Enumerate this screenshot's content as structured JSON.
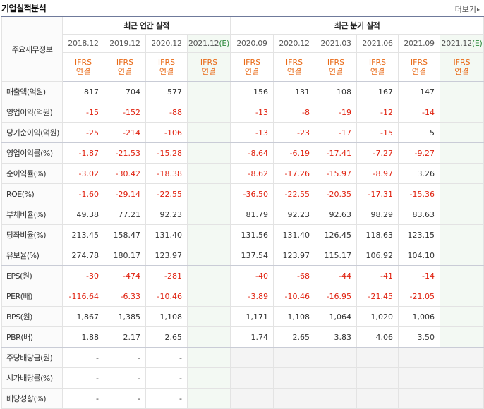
{
  "header": {
    "title": "기업실적분석",
    "more_label": "더보기",
    "more_arrow": "▸"
  },
  "table": {
    "corner_label": "주요재무정보",
    "annual_group_label": "최근 연간 실적",
    "quarter_group_label": "최근 분기 실적",
    "annual_dates": [
      {
        "date": "2018.12",
        "est": ""
      },
      {
        "date": "2019.12",
        "est": ""
      },
      {
        "date": "2020.12",
        "est": ""
      },
      {
        "date": "2021.12",
        "est": "(E)"
      }
    ],
    "quarter_dates": [
      {
        "date": "2020.09",
        "est": ""
      },
      {
        "date": "2020.12",
        "est": ""
      },
      {
        "date": "2021.03",
        "est": ""
      },
      {
        "date": "2021.06",
        "est": ""
      },
      {
        "date": "2021.09",
        "est": ""
      },
      {
        "date": "2021.12",
        "est": "(E)"
      }
    ],
    "ifrs_top": "IFRS",
    "ifrs_bottom": "연결",
    "rows": [
      {
        "label": "매출액(억원)",
        "annual": [
          "817",
          "704",
          "577",
          ""
        ],
        "quarter": [
          "156",
          "131",
          "108",
          "167",
          "147",
          ""
        ]
      },
      {
        "label": "영업이익(억원)",
        "annual": [
          "-15",
          "-152",
          "-88",
          ""
        ],
        "quarter": [
          "-13",
          "-8",
          "-19",
          "-12",
          "-14",
          ""
        ]
      },
      {
        "label": "당기순이익(억원)",
        "annual": [
          "-25",
          "-214",
          "-106",
          ""
        ],
        "quarter": [
          "-13",
          "-23",
          "-17",
          "-15",
          "5",
          ""
        ]
      },
      {
        "label": "영업이익률(%)",
        "annual": [
          "-1.87",
          "-21.53",
          "-15.28",
          ""
        ],
        "quarter": [
          "-8.64",
          "-6.19",
          "-17.41",
          "-7.27",
          "-9.27",
          ""
        ]
      },
      {
        "label": "순이익률(%)",
        "annual": [
          "-3.02",
          "-30.42",
          "-18.38",
          ""
        ],
        "quarter": [
          "-8.62",
          "-17.26",
          "-15.97",
          "-8.97",
          "3.26",
          ""
        ]
      },
      {
        "label": "ROE(%)",
        "annual": [
          "-1.60",
          "-29.14",
          "-22.55",
          ""
        ],
        "quarter": [
          "-36.50",
          "-22.55",
          "-20.35",
          "-17.31",
          "-15.36",
          ""
        ]
      },
      {
        "label": "부채비율(%)",
        "annual": [
          "49.38",
          "77.21",
          "92.23",
          ""
        ],
        "quarter": [
          "81.79",
          "92.23",
          "92.63",
          "98.29",
          "83.63",
          ""
        ]
      },
      {
        "label": "당좌비율(%)",
        "annual": [
          "213.45",
          "158.47",
          "131.40",
          ""
        ],
        "quarter": [
          "131.56",
          "131.40",
          "126.45",
          "118.63",
          "123.15",
          ""
        ]
      },
      {
        "label": "유보율(%)",
        "annual": [
          "274.78",
          "180.17",
          "123.97",
          ""
        ],
        "quarter": [
          "137.54",
          "123.97",
          "115.17",
          "106.92",
          "104.10",
          ""
        ]
      },
      {
        "label": "EPS(원)",
        "annual": [
          "-30",
          "-474",
          "-281",
          ""
        ],
        "quarter": [
          "-40",
          "-68",
          "-44",
          "-41",
          "-14",
          ""
        ]
      },
      {
        "label": "PER(배)",
        "annual": [
          "-116.64",
          "-6.33",
          "-10.46",
          ""
        ],
        "quarter": [
          "-3.89",
          "-10.46",
          "-16.95",
          "-21.45",
          "-21.05",
          ""
        ]
      },
      {
        "label": "BPS(원)",
        "annual": [
          "1,867",
          "1,385",
          "1,108",
          ""
        ],
        "quarter": [
          "1,171",
          "1,108",
          "1,064",
          "1,020",
          "1,006",
          ""
        ]
      },
      {
        "label": "PBR(배)",
        "annual": [
          "1.88",
          "2.17",
          "2.65",
          ""
        ],
        "quarter": [
          "1.74",
          "2.65",
          "3.83",
          "4.06",
          "3.50",
          ""
        ]
      },
      {
        "label": "주당배당금(원)",
        "annual": [
          "-",
          "-",
          "-",
          ""
        ],
        "quarter": null
      },
      {
        "label": "시가배당률(%)",
        "annual": [
          "-",
          "-",
          "-",
          ""
        ],
        "quarter": null
      },
      {
        "label": "배당성향(%)",
        "annual": [
          "-",
          "-",
          "-",
          ""
        ],
        "quarter": null
      }
    ],
    "colors": {
      "negative": "#e0210f",
      "ifrs": "#e96a17",
      "estimate_label": "#2e8b3d",
      "estimate_bg": "#f3f9f3"
    }
  }
}
